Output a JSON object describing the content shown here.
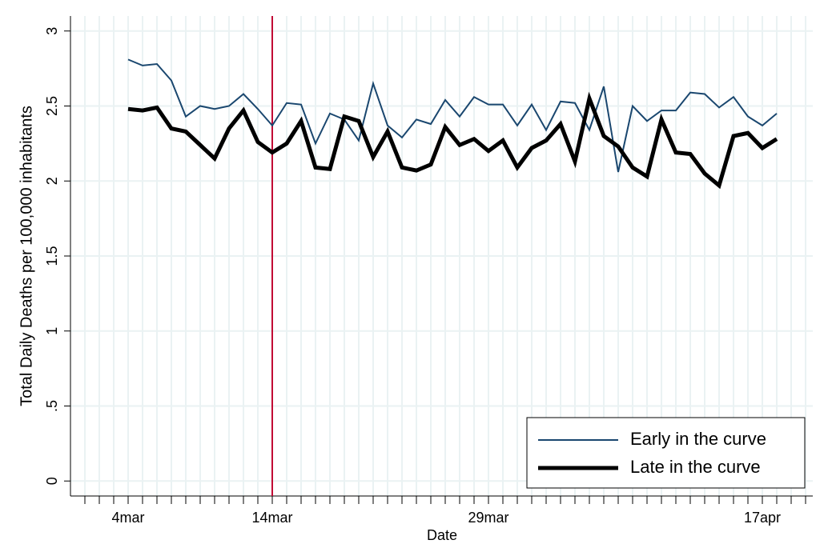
{
  "chart_data": {
    "type": "line",
    "xlabel": "Date",
    "ylabel": "Total Daily Deaths per 100,000 inhabitants",
    "x": [
      "4mar",
      "5mar",
      "6mar",
      "7mar",
      "8mar",
      "9mar",
      "10mar",
      "11mar",
      "12mar",
      "13mar",
      "14mar",
      "15mar",
      "16mar",
      "17mar",
      "18mar",
      "19mar",
      "20mar",
      "21mar",
      "22mar",
      "23mar",
      "24mar",
      "25mar",
      "26mar",
      "27mar",
      "28mar",
      "29mar",
      "30mar",
      "31mar",
      "1apr",
      "2apr",
      "3apr",
      "4apr",
      "5apr",
      "6apr",
      "7apr",
      "8apr",
      "9apr",
      "10apr",
      "11apr",
      "12apr",
      "13apr",
      "14apr",
      "15apr",
      "16apr",
      "17apr",
      "18apr"
    ],
    "series": [
      {
        "name": "Early in the curve",
        "color": "#1a476f",
        "width": 2,
        "values": [
          2.81,
          2.77,
          2.78,
          2.67,
          2.43,
          2.5,
          2.48,
          2.5,
          2.58,
          2.48,
          2.37,
          2.52,
          2.51,
          2.25,
          2.45,
          2.41,
          2.27,
          2.65,
          2.37,
          2.29,
          2.41,
          2.38,
          2.54,
          2.43,
          2.56,
          2.51,
          2.51,
          2.37,
          2.51,
          2.34,
          2.53,
          2.52,
          2.34,
          2.63,
          2.06,
          2.5,
          2.4,
          2.47,
          2.47,
          2.59,
          2.58,
          2.49,
          2.56,
          2.43,
          2.37,
          2.45
        ]
      },
      {
        "name": "Late in the curve",
        "color": "#000000",
        "width": 5,
        "values": [
          2.48,
          2.47,
          2.49,
          2.35,
          2.33,
          2.24,
          2.15,
          2.35,
          2.47,
          2.26,
          2.19,
          2.25,
          2.4,
          2.09,
          2.08,
          2.43,
          2.4,
          2.16,
          2.33,
          2.09,
          2.07,
          2.11,
          2.36,
          2.24,
          2.28,
          2.2,
          2.27,
          2.09,
          2.22,
          2.27,
          2.38,
          2.13,
          2.55,
          2.3,
          2.23,
          2.09,
          2.03,
          2.41,
          2.19,
          2.18,
          2.05,
          1.97,
          2.3,
          2.32,
          2.22,
          2.28
        ]
      }
    ],
    "xticks": [
      "4mar",
      "14mar",
      "29mar",
      "17apr"
    ],
    "ylim": [
      -0.1,
      3.1
    ],
    "yticks": [
      0,
      {
        "value": 0.5,
        "label": ".5"
      },
      1,
      1.5,
      2,
      2.5,
      3
    ],
    "vline": {
      "x": "14mar",
      "color": "#c10534"
    },
    "grid": true,
    "legend": "bottom-right"
  }
}
